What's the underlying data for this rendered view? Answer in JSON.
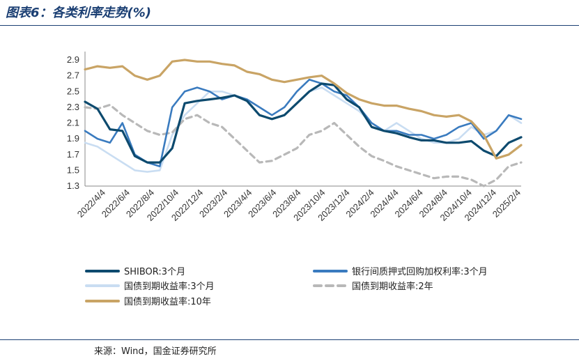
{
  "header": {
    "title": "图表6：各类利率走势(%)"
  },
  "footer": {
    "source": "来源：Wind，国金证券研究所"
  },
  "chart_data": {
    "type": "line",
    "title": "",
    "ylim": [
      1.3,
      2.9
    ],
    "yticks": [
      "1.3",
      "1.5",
      "1.7",
      "1.9",
      "2.1",
      "2.3",
      "2.5",
      "2.7",
      "2.9"
    ],
    "x_tick_labels": [
      "2022/4/4",
      "2022/6/4",
      "2022/8/4",
      "2022/10/4",
      "2022/12/4",
      "2023/2/4",
      "2023/4/4",
      "2023/6/4",
      "2023/8/4",
      "2023/10/4",
      "2023/12/4",
      "2024/2/4",
      "2024/4/4",
      "2024/6/4",
      "2024/8/4",
      "2024/10/4",
      "2024/12/4",
      "2025/2/4"
    ],
    "x": [
      "2022/4",
      "2022/5",
      "2022/6",
      "2022/7",
      "2022/8",
      "2022/9",
      "2022/10",
      "2022/11",
      "2022/12",
      "2023/1",
      "2023/2",
      "2023/3",
      "2023/4",
      "2023/5",
      "2023/6",
      "2023/7",
      "2023/8",
      "2023/9",
      "2023/10",
      "2023/11",
      "2023/12",
      "2024/1",
      "2024/2",
      "2024/3",
      "2024/4",
      "2024/5",
      "2024/6",
      "2024/7",
      "2024/8",
      "2024/9",
      "2024/10",
      "2024/11",
      "2024/12",
      "2025/1",
      "2025/2",
      "2025/3"
    ],
    "series": [
      {
        "name": "SHIBOR:3个月",
        "color": "#0d4a6e",
        "style": "solid-thick",
        "values": [
          2.37,
          2.28,
          2.02,
          2.0,
          1.68,
          1.6,
          1.6,
          1.78,
          2.35,
          2.38,
          2.4,
          2.42,
          2.45,
          2.38,
          2.2,
          2.15,
          2.2,
          2.35,
          2.5,
          2.6,
          2.58,
          2.4,
          2.3,
          2.05,
          2.0,
          1.97,
          1.92,
          1.88,
          1.88,
          1.85,
          1.85,
          1.87,
          1.75,
          1.68,
          1.85,
          1.92
        ]
      },
      {
        "name": "银行间质押式回购加权利率:3个月",
        "color": "#3a7bbf",
        "style": "solid",
        "values": [
          2.0,
          1.9,
          1.85,
          2.1,
          1.7,
          1.6,
          1.55,
          2.3,
          2.5,
          2.55,
          2.5,
          2.4,
          2.45,
          2.4,
          2.3,
          2.2,
          2.3,
          2.5,
          2.65,
          2.6,
          2.5,
          2.45,
          2.3,
          2.1,
          2.0,
          2.0,
          1.95,
          1.95,
          1.9,
          1.95,
          2.05,
          2.1,
          1.9,
          2.0,
          2.2,
          2.15
        ]
      },
      {
        "name": "国债到期收益率:3个月",
        "color": "#c9ddf2",
        "style": "solid",
        "values": [
          1.85,
          1.8,
          1.7,
          1.6,
          1.5,
          1.48,
          1.5,
          1.95,
          2.2,
          2.35,
          2.5,
          2.5,
          2.45,
          2.4,
          2.2,
          2.15,
          2.2,
          2.35,
          2.5,
          2.55,
          2.45,
          2.35,
          2.25,
          2.1,
          2.0,
          2.1,
          2.0,
          1.9,
          1.85,
          1.85,
          1.9,
          2.05,
          1.95,
          2.0,
          2.2,
          2.1
        ]
      },
      {
        "name": "国债到期收益率:2年",
        "color": "#b8b8b8",
        "style": "dashed",
        "values": [
          2.3,
          2.28,
          2.33,
          2.2,
          2.1,
          2.0,
          1.95,
          1.98,
          2.15,
          2.2,
          2.1,
          2.05,
          1.9,
          1.75,
          1.6,
          1.62,
          1.7,
          1.78,
          1.95,
          2.0,
          2.1,
          1.95,
          1.8,
          1.68,
          1.62,
          1.55,
          1.5,
          1.45,
          1.4,
          1.42,
          1.42,
          1.38,
          1.3,
          1.38,
          1.55,
          1.6
        ]
      },
      {
        "name": "国债到期收益率:10年",
        "color": "#c9a465",
        "style": "solid-thick",
        "values": [
          2.78,
          2.82,
          2.8,
          2.82,
          2.7,
          2.65,
          2.7,
          2.88,
          2.9,
          2.88,
          2.88,
          2.85,
          2.83,
          2.75,
          2.72,
          2.65,
          2.62,
          2.65,
          2.68,
          2.7,
          2.6,
          2.48,
          2.4,
          2.35,
          2.32,
          2.32,
          2.28,
          2.25,
          2.2,
          2.18,
          2.2,
          2.12,
          1.95,
          1.65,
          1.7,
          1.82
        ]
      }
    ],
    "legend_position": "bottom",
    "grid": false
  }
}
